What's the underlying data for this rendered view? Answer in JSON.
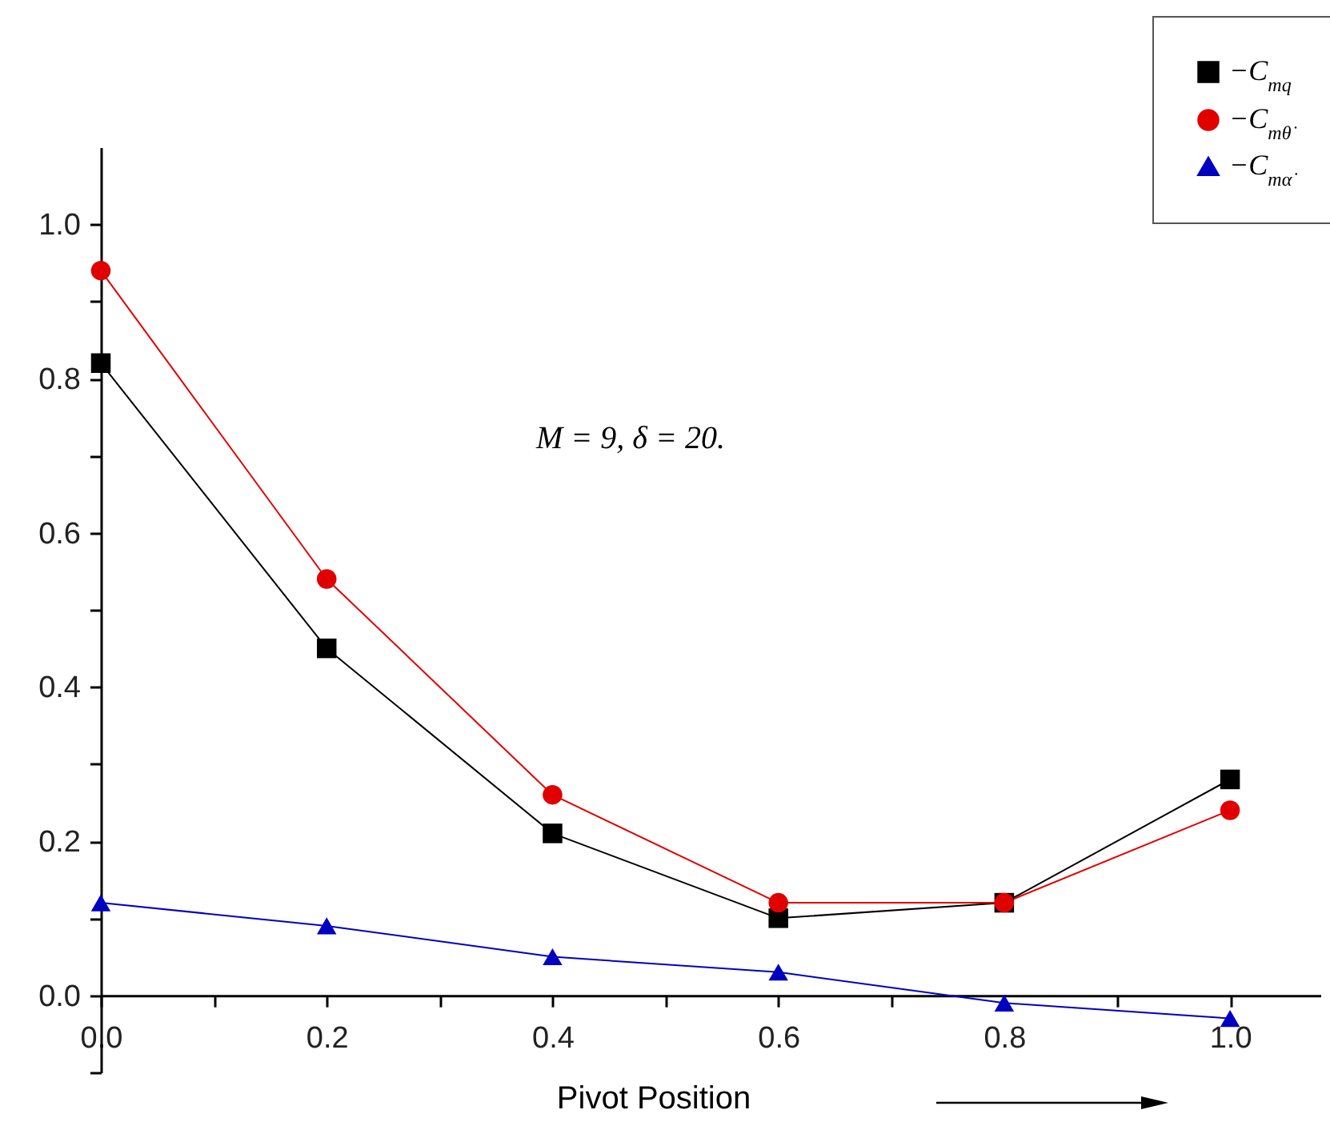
{
  "chart_data": {
    "type": "line",
    "xlabel": "Pivot Position",
    "annotations": [
      "M = 9, δ = 20."
    ],
    "x": [
      0,
      0.2,
      0.4,
      0.6,
      0.8,
      1.0
    ],
    "xlim": [
      0,
      1.08
    ],
    "xticks": [
      {
        "value": 0,
        "label": "0.0"
      },
      {
        "value": 0.1,
        "label": null
      },
      0.2,
      {
        "value": 0.3,
        "label": null
      },
      0.4,
      {
        "value": 0.5,
        "label": null
      },
      0.6,
      {
        "value": 0.7,
        "label": null
      },
      0.8,
      {
        "value": 0.9,
        "label": null
      },
      {
        "value": 1.0,
        "label": "1.0"
      }
    ],
    "ylim": [
      -0.1,
      1.1
    ],
    "yticks": [
      {
        "value": -0.1,
        "label": null
      },
      {
        "value": 0,
        "label": "0.0"
      },
      {
        "value": 0.1,
        "label": null
      },
      0.2,
      {
        "value": 0.3,
        "label": null
      },
      0.4,
      {
        "value": 0.5,
        "label": null
      },
      0.6,
      {
        "value": 0.7,
        "label": null
      },
      0.8,
      {
        "value": 0.9,
        "label": null
      },
      {
        "value": 1.0,
        "label": "1.0"
      }
    ],
    "grid": false,
    "legend": "top right",
    "series": [
      {
        "name": "−C$_{mq}$",
        "color": "#000000",
        "marker": "square",
        "values": [
          0.82,
          0.45,
          0.21,
          0.1,
          0.12,
          0.28
        ]
      },
      {
        "name": "−C$_{mθ̇}$",
        "color": "#e00000",
        "marker": "circle",
        "values": [
          0.94,
          0.54,
          0.26,
          0.12,
          0.12,
          0.24
        ]
      },
      {
        "name": "−C$_{mα̇}$",
        "color": "#0000c0",
        "marker": "triangle",
        "values": [
          0.12,
          0.09,
          0.05,
          0.03,
          -0.01,
          -0.03
        ]
      }
    ]
  }
}
